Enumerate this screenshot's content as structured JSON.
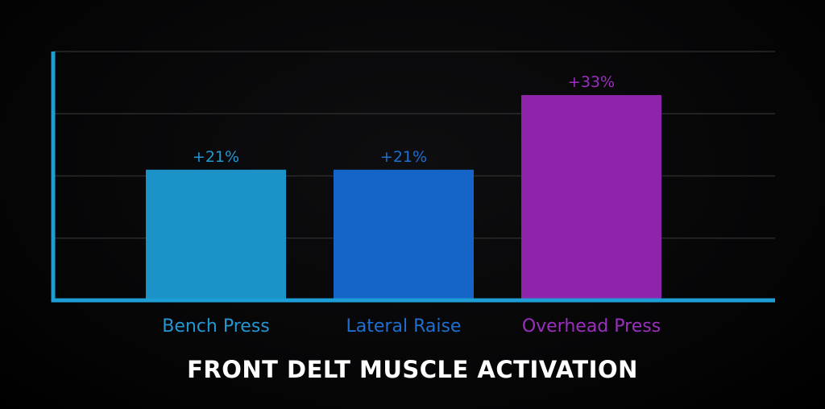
{
  "chart_data": {
    "type": "bar",
    "title": "FRONT DELT MUSCLE ACTIVATION",
    "xlabel": "",
    "ylabel": "",
    "categories": [
      "Bench Press",
      "Lateral Raise",
      "Overhead Press"
    ],
    "values": [
      21,
      21,
      33
    ],
    "value_labels": [
      "+21%",
      "+21%",
      "+33%"
    ],
    "ylim": [
      0,
      40
    ],
    "grid": true,
    "legend": "none",
    "colors": {
      "axis": "#1e9ed6",
      "gridline": "#2a2a2a",
      "bars": [
        "#1b93c9",
        "#1565c8",
        "#8e24aa"
      ],
      "labels": [
        "#2496d4",
        "#1e6fd0",
        "#9c2fbf"
      ]
    }
  }
}
